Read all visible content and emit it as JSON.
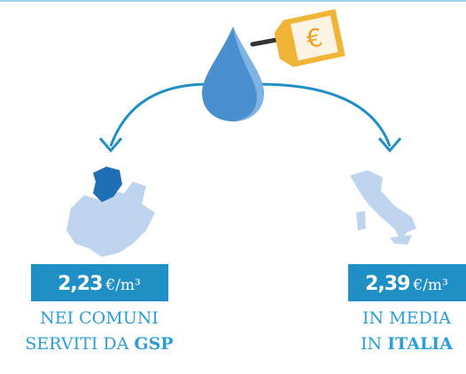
{
  "tag": {
    "symbol": "€"
  },
  "items": [
    {
      "price": "2,23",
      "unit": "€/m³",
      "caption": {
        "line1": "NEI COMUNI",
        "line2": "SERVITI DA ",
        "bold": "GSP"
      }
    },
    {
      "price": "2,39",
      "unit": "€/m³",
      "caption": {
        "line1": "IN MEDIA",
        "line2": "IN ",
        "bold": "ITALIA"
      }
    }
  ]
}
